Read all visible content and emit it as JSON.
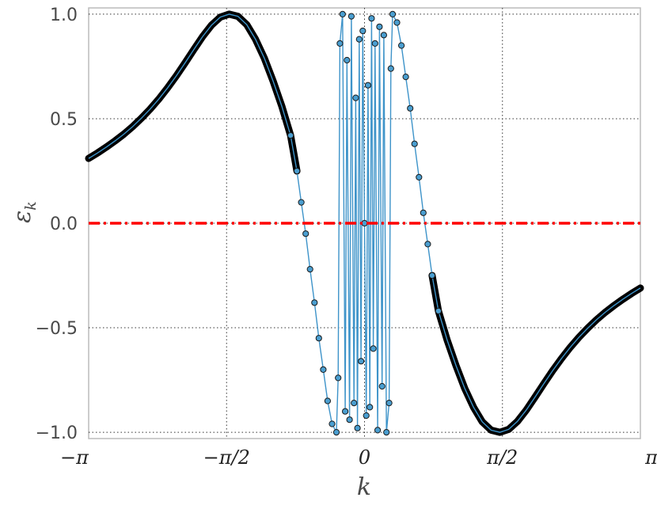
{
  "chart_data": {
    "type": "line",
    "title": "",
    "xlabel": "k",
    "ylabel": "ε",
    "ylabel_subscript": "k",
    "xlim": [
      -3.14159,
      3.14159
    ],
    "ylim": [
      -1.03,
      1.03
    ],
    "grid": true,
    "x_ticks": [
      {
        "value": -3.14159,
        "label": "−π"
      },
      {
        "value": -1.5708,
        "label": "−π/2"
      },
      {
        "value": 0,
        "label": "0"
      },
      {
        "value": 1.5708,
        "label": "π/2"
      },
      {
        "value": 3.14159,
        "label": "π"
      }
    ],
    "y_ticks": [
      {
        "value": 1.0,
        "label": "1.0"
      },
      {
        "value": 0.5,
        "label": "0.5"
      },
      {
        "value": 0.0,
        "label": "0.0"
      },
      {
        "value": -0.5,
        "label": "−0.5"
      },
      {
        "value": -1.0,
        "label": "−1.0"
      }
    ],
    "series": [
      {
        "style": "markers-with-line",
        "line_color": "#3d93c9",
        "marker_fill": "#4a9ed0",
        "marker_edge": "#1a1a1a",
        "x": [
          -3.1416,
          -3.0416,
          -2.9416,
          -2.8416,
          -2.7416,
          -2.6416,
          -2.5416,
          -2.4416,
          -2.3416,
          -2.2416,
          -2.1416,
          -2.0416,
          -1.9416,
          -1.8416,
          -1.7416,
          -1.6416,
          -1.5416,
          -1.4416,
          -1.3416,
          -1.2416,
          -1.1416,
          -1.0416,
          -0.9416,
          -0.8416,
          -0.77,
          -0.72,
          -0.67,
          -0.62,
          -0.57,
          -0.52,
          -0.47,
          -0.42,
          -0.37,
          -0.32,
          -0.3,
          -0.28,
          -0.25,
          -0.22,
          -0.2,
          -0.17,
          -0.15,
          -0.12,
          -0.1,
          -0.08,
          -0.06,
          -0.04,
          -0.02,
          0.0,
          0.02,
          0.04,
          0.06,
          0.08,
          0.1,
          0.12,
          0.15,
          0.17,
          0.2,
          0.22,
          0.25,
          0.28,
          0.3,
          0.32,
          0.37,
          0.42,
          0.47,
          0.52,
          0.57,
          0.62,
          0.67,
          0.72,
          0.77,
          0.8416,
          0.9416,
          1.0416,
          1.1416,
          1.2416,
          1.3416,
          1.4416,
          1.5416,
          1.6416,
          1.7416,
          1.8416,
          1.9416,
          2.0416,
          2.1416,
          2.2416,
          2.3416,
          2.4416,
          2.5416,
          2.6416,
          2.7416,
          2.8416,
          2.9416,
          3.0416,
          3.1416
        ],
        "y": [
          0.31,
          0.336,
          0.364,
          0.394,
          0.426,
          0.462,
          0.502,
          0.546,
          0.594,
          0.648,
          0.706,
          0.768,
          0.832,
          0.894,
          0.948,
          0.986,
          1.0,
          0.99,
          0.95,
          0.88,
          0.79,
          0.68,
          0.56,
          0.42,
          0.25,
          0.1,
          -0.05,
          -0.22,
          -0.38,
          -0.55,
          -0.7,
          -0.85,
          -0.96,
          -1.0,
          -0.74,
          0.86,
          1.0,
          -0.9,
          0.78,
          -0.94,
          0.99,
          -0.86,
          0.6,
          -0.98,
          0.88,
          -0.66,
          0.92,
          0.0,
          -0.92,
          0.66,
          -0.88,
          0.98,
          -0.6,
          0.86,
          -0.99,
          0.94,
          -0.78,
          0.9,
          -1.0,
          -0.86,
          0.74,
          1.0,
          0.96,
          0.85,
          0.7,
          0.55,
          0.38,
          0.22,
          0.05,
          -0.1,
          -0.25,
          -0.42,
          -0.56,
          -0.68,
          -0.79,
          -0.88,
          -0.95,
          -0.99,
          -1.0,
          -0.986,
          -0.948,
          -0.894,
          -0.832,
          -0.768,
          -0.706,
          -0.648,
          -0.594,
          -0.546,
          -0.502,
          -0.462,
          -0.426,
          -0.394,
          -0.364,
          -0.336,
          -0.31
        ]
      },
      {
        "style": "line",
        "color": "#ff0000",
        "dash": "dash-dot",
        "x": [
          -3.14159,
          3.14159
        ],
        "y": [
          0,
          0
        ]
      }
    ]
  }
}
